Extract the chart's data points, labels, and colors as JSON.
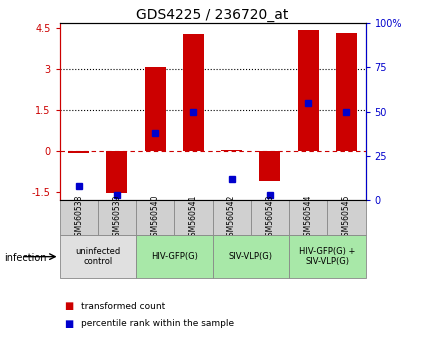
{
  "title": "GDS4225 / 236720_at",
  "samples": [
    "GSM560538",
    "GSM560539",
    "GSM560540",
    "GSM560541",
    "GSM560542",
    "GSM560543",
    "GSM560544",
    "GSM560545"
  ],
  "bar_values": [
    -0.08,
    -1.55,
    3.1,
    4.3,
    0.05,
    -1.1,
    4.45,
    4.35
  ],
  "dot_values": [
    8,
    3,
    38,
    50,
    12,
    3,
    55,
    50
  ],
  "ylim": [
    -1.8,
    4.7
  ],
  "y2lim": [
    0,
    100
  ],
  "yticks": [
    -1.5,
    0,
    1.5,
    3,
    4.5
  ],
  "y2ticks": [
    0,
    25,
    50,
    75,
    100
  ],
  "bar_color": "#cc0000",
  "dot_color": "#0000cc",
  "groups": [
    {
      "label": "uninfected\ncontrol",
      "start": 0,
      "end": 2,
      "color": "#e0e0e0"
    },
    {
      "label": "HIV-GFP(G)",
      "start": 2,
      "end": 4,
      "color": "#a8e8a8"
    },
    {
      "label": "SIV-VLP(G)",
      "start": 4,
      "end": 6,
      "color": "#a8e8a8"
    },
    {
      "label": "HIV-GFP(G) +\nSIV-VLP(G)",
      "start": 6,
      "end": 8,
      "color": "#a8e8a8"
    }
  ],
  "infection_label": "infection",
  "legend_items": [
    {
      "color": "#cc0000",
      "label": "transformed count"
    },
    {
      "color": "#0000cc",
      "label": "percentile rank within the sample"
    }
  ],
  "sample_box_color": "#d0d0d0",
  "title_fontsize": 10,
  "tick_fontsize": 7,
  "label_fontsize": 6.5
}
